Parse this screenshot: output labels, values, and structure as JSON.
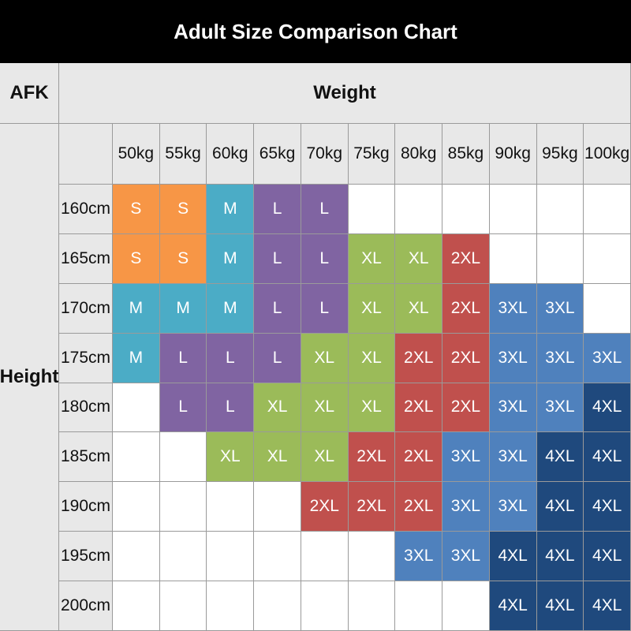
{
  "header": {
    "title": "Adult Size Comparison Chart",
    "corner": "AFK",
    "weight_label": "Weight",
    "height_label": "Height"
  },
  "table": {
    "weights": [
      "50kg",
      "55kg",
      "60kg",
      "65kg",
      "70kg",
      "75kg",
      "80kg",
      "85kg",
      "90kg",
      "95kg",
      "100kg"
    ],
    "heights": [
      "160cm",
      "165cm",
      "170cm",
      "175cm",
      "180cm",
      "185cm",
      "190cm",
      "195cm",
      "200cm"
    ],
    "rows": [
      [
        "S",
        "S",
        "M",
        "L",
        "L",
        null,
        null,
        null,
        null,
        null,
        null
      ],
      [
        "S",
        "S",
        "M",
        "L",
        "L",
        "XL",
        "XL",
        "2XL",
        null,
        null,
        null
      ],
      [
        "M",
        "M",
        "M",
        "L",
        "L",
        "XL",
        "XL",
        "2XL",
        "3XL",
        "3XL",
        null
      ],
      [
        "M",
        "L",
        "L",
        "L",
        "XL",
        "XL",
        "2XL",
        "2XL",
        "3XL",
        "3XL",
        "3XL"
      ],
      [
        null,
        "L",
        "L",
        "XL",
        "XL",
        "XL",
        "2XL",
        "2XL",
        "3XL",
        "3XL",
        "4XL"
      ],
      [
        null,
        null,
        "XL",
        "XL",
        "XL",
        "2XL",
        "2XL",
        "3XL",
        "3XL",
        "4XL",
        "4XL"
      ],
      [
        null,
        null,
        null,
        null,
        "2XL",
        "2XL",
        "2XL",
        "3XL",
        "3XL",
        "4XL",
        "4XL"
      ],
      [
        null,
        null,
        null,
        null,
        null,
        null,
        "3XL",
        "3XL",
        "4XL",
        "4XL",
        "4XL"
      ],
      [
        null,
        null,
        null,
        null,
        null,
        null,
        null,
        null,
        "4XL",
        "4XL",
        "4XL"
      ]
    ],
    "size_colors": {
      "S": "#f79646",
      "M": "#4bacc6",
      "L": "#8064a2",
      "XL": "#9bbb59",
      "2XL": "#c0504d",
      "3XL": "#4f81bd",
      "4XL": "#1f497d"
    }
  }
}
